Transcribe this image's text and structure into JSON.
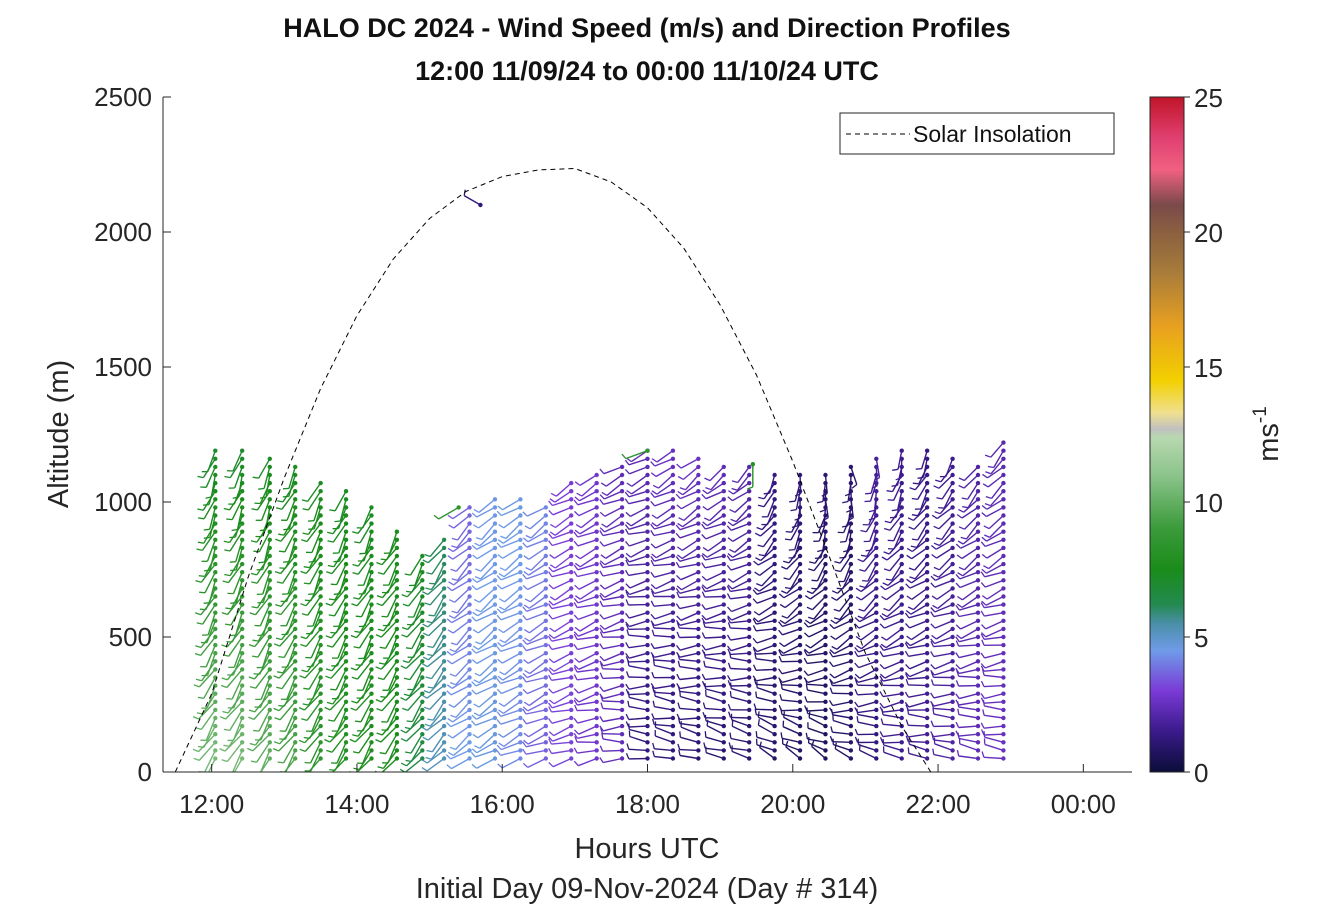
{
  "chart_data": {
    "type": "scatter",
    "title": "HALO DC 2024 - Wind Speed (m/s) and Direction Profiles",
    "subtitle": "12:00 11/09/24 to 00:00 11/10/24  UTC",
    "xlabel": "Hours UTC",
    "ylabel": "Altitude (m)",
    "footer": "Initial Day 09-Nov-2024 (Day # 314)",
    "x_ticks": [
      "12:00",
      "14:00",
      "16:00",
      "18:00",
      "20:00",
      "22:00",
      "00:00"
    ],
    "x_tick_hours": [
      12,
      14,
      16,
      18,
      20,
      22,
      24
    ],
    "xlim_hours": [
      11.33,
      24.67
    ],
    "y_ticks": [
      "0",
      "500",
      "1000",
      "1500",
      "2000",
      "2500"
    ],
    "y_tick_values": [
      0,
      500,
      1000,
      1500,
      2000,
      2500
    ],
    "ylim": [
      0,
      2500
    ],
    "colorbar": {
      "label_base": "ms",
      "label_exp": "-1",
      "range": [
        0,
        25
      ],
      "ticks": [
        "0",
        "5",
        "10",
        "15",
        "20",
        "25"
      ],
      "tick_values": [
        0,
        5,
        10,
        15,
        20,
        25
      ],
      "stops": [
        {
          "v": 0,
          "c": "#0b0d3a"
        },
        {
          "v": 1.5,
          "c": "#3a1a8a"
        },
        {
          "v": 3,
          "c": "#7a3ad6"
        },
        {
          "v": 4.5,
          "c": "#6f9be8"
        },
        {
          "v": 5.5,
          "c": "#4a8fa8"
        },
        {
          "v": 6.2,
          "c": "#238a50"
        },
        {
          "v": 7.5,
          "c": "#1a8c1a"
        },
        {
          "v": 9,
          "c": "#3a9a3a"
        },
        {
          "v": 11,
          "c": "#8cc48c"
        },
        {
          "v": 12.4,
          "c": "#b8d8b0"
        },
        {
          "v": 12.7,
          "c": "#c0c0c0"
        },
        {
          "v": 13.3,
          "c": "#f0e090"
        },
        {
          "v": 14.5,
          "c": "#f2d000"
        },
        {
          "v": 16.5,
          "c": "#e8a020"
        },
        {
          "v": 18.5,
          "c": "#a87c3a"
        },
        {
          "v": 20,
          "c": "#8a6040"
        },
        {
          "v": 21,
          "c": "#7a4a4a"
        },
        {
          "v": 22.3,
          "c": "#f06080"
        },
        {
          "v": 23.5,
          "c": "#e04070"
        },
        {
          "v": 25,
          "c": "#c01428"
        }
      ]
    },
    "solar_insolation": {
      "name": "Solar Insolation",
      "style": "dashed",
      "color": "#000000",
      "points": [
        [
          11.5,
          0
        ],
        [
          12.0,
          290
        ],
        [
          12.5,
          720
        ],
        [
          13.0,
          1090
        ],
        [
          13.5,
          1420
        ],
        [
          14.0,
          1690
        ],
        [
          14.5,
          1900
        ],
        [
          15.0,
          2050
        ],
        [
          15.5,
          2150
        ],
        [
          16.0,
          2205
        ],
        [
          16.5,
          2230
        ],
        [
          17.0,
          2235
        ],
        [
          17.5,
          2185
        ],
        [
          18.0,
          2090
        ],
        [
          18.5,
          1940
        ],
        [
          19.0,
          1730
        ],
        [
          19.5,
          1470
        ],
        [
          20.0,
          1150
        ],
        [
          20.5,
          800
        ],
        [
          21.0,
          440
        ],
        [
          21.5,
          170
        ],
        [
          21.9,
          0
        ],
        [
          24.67,
          0
        ]
      ]
    },
    "wind_barbs": {
      "note": "One vertical profile per time; each barb colored by wind speed (ms-1) and oriented by wind direction (degrees, meteorological).",
      "profiles": [
        {
          "t": 12.05,
          "top": 1200,
          "speed_lo": 10.5,
          "speed_hi": 7.0,
          "dir_lo": 215,
          "dir_hi": 200
        },
        {
          "t": 12.42,
          "top": 1200,
          "speed_lo": 10.5,
          "speed_hi": 7.0,
          "dir_lo": 215,
          "dir_hi": 200
        },
        {
          "t": 12.8,
          "top": 1160,
          "speed_lo": 10.0,
          "speed_hi": 7.2,
          "dir_lo": 215,
          "dir_hi": 200
        },
        {
          "t": 13.15,
          "top": 1150,
          "speed_lo": 9.5,
          "speed_hi": 7.2,
          "dir_lo": 215,
          "dir_hi": 205
        },
        {
          "t": 13.5,
          "top": 1080,
          "speed_lo": 8.5,
          "speed_hi": 7.3,
          "dir_lo": 215,
          "dir_hi": 205
        },
        {
          "t": 13.85,
          "top": 1050,
          "speed_lo": 8.0,
          "speed_hi": 7.3,
          "dir_lo": 215,
          "dir_hi": 205
        },
        {
          "t": 14.2,
          "top": 1000,
          "speed_lo": 7.8,
          "speed_hi": 7.3,
          "dir_lo": 215,
          "dir_hi": 205
        },
        {
          "t": 14.55,
          "top": 900,
          "speed_lo": 7.5,
          "speed_hi": 7.4,
          "dir_lo": 215,
          "dir_hi": 210
        },
        {
          "t": 14.9,
          "top": 820,
          "speed_lo": 6.5,
          "speed_hi": 7.4,
          "dir_lo": 220,
          "dir_hi": 210
        },
        {
          "t": 15.2,
          "top": 880,
          "speed_lo": 5.2,
          "speed_hi": 6.2,
          "dir_lo": 225,
          "dir_hi": 215
        },
        {
          "t": 15.55,
          "top": 980,
          "speed_lo": 4.6,
          "speed_hi": 3.6,
          "dir_lo": 235,
          "dir_hi": 225
        },
        {
          "t": 15.9,
          "top": 1020,
          "speed_lo": 4.7,
          "speed_hi": 4.4,
          "dir_lo": 240,
          "dir_hi": 230
        },
        {
          "t": 16.25,
          "top": 1020,
          "speed_lo": 4.2,
          "speed_hi": 4.6,
          "dir_lo": 245,
          "dir_hi": 235
        },
        {
          "t": 16.6,
          "top": 1000,
          "speed_lo": 3.6,
          "speed_hi": 4.2,
          "dir_lo": 250,
          "dir_hi": 235
        },
        {
          "t": 16.95,
          "top": 1080,
          "speed_lo": 3.2,
          "speed_hi": 3.0,
          "dir_lo": 255,
          "dir_hi": 240
        },
        {
          "t": 17.3,
          "top": 1110,
          "speed_lo": 2.8,
          "speed_hi": 2.8,
          "dir_lo": 260,
          "dir_hi": 240
        },
        {
          "t": 17.65,
          "top": 1130,
          "speed_lo": 2.4,
          "speed_hi": 2.4,
          "dir_lo": 270,
          "dir_hi": 240
        },
        {
          "t": 18.0,
          "top": 1200,
          "speed_lo": 1.2,
          "speed_hi": 2.4,
          "dir_lo": 280,
          "dir_hi": 240
        },
        {
          "t": 18.35,
          "top": 1190,
          "speed_lo": 1.1,
          "speed_hi": 2.6,
          "dir_lo": 285,
          "dir_hi": 235
        },
        {
          "t": 18.7,
          "top": 1160,
          "speed_lo": 1.0,
          "speed_hi": 2.6,
          "dir_lo": 285,
          "dir_hi": 230
        },
        {
          "t": 19.05,
          "top": 1140,
          "speed_lo": 1.0,
          "speed_hi": 2.4,
          "dir_lo": 290,
          "dir_hi": 230
        },
        {
          "t": 19.4,
          "top": 1130,
          "speed_lo": 1.0,
          "speed_hi": 2.2,
          "dir_lo": 290,
          "dir_hi": 225
        },
        {
          "t": 19.75,
          "top": 1110,
          "speed_lo": 0.9,
          "speed_hi": 1.4,
          "dir_lo": 300,
          "dir_hi": 200
        },
        {
          "t": 20.1,
          "top": 1100,
          "speed_lo": 0.8,
          "speed_hi": 1.2,
          "dir_lo": 300,
          "dir_hi": 180
        },
        {
          "t": 20.45,
          "top": 1120,
          "speed_lo": 0.7,
          "speed_hi": 1.0,
          "dir_lo": 300,
          "dir_hi": 170
        },
        {
          "t": 20.8,
          "top": 1140,
          "speed_lo": 0.9,
          "speed_hi": 1.0,
          "dir_lo": 290,
          "dir_hi": 170
        },
        {
          "t": 21.15,
          "top": 1170,
          "speed_lo": 1.2,
          "speed_hi": 1.8,
          "dir_lo": 285,
          "dir_hi": 180
        },
        {
          "t": 21.5,
          "top": 1200,
          "speed_lo": 1.6,
          "speed_hi": 1.6,
          "dir_lo": 280,
          "dir_hi": 190
        },
        {
          "t": 21.85,
          "top": 1200,
          "speed_lo": 1.7,
          "speed_hi": 1.4,
          "dir_lo": 280,
          "dir_hi": 200
        },
        {
          "t": 22.2,
          "top": 1170,
          "speed_lo": 2.0,
          "speed_hi": 1.6,
          "dir_lo": 280,
          "dir_hi": 210
        },
        {
          "t": 22.55,
          "top": 1150,
          "speed_lo": 2.4,
          "speed_hi": 2.0,
          "dir_lo": 280,
          "dir_hi": 215
        },
        {
          "t": 22.9,
          "top": 1220,
          "speed_lo": 2.6,
          "speed_hi": 2.2,
          "dir_lo": 280,
          "dir_hi": 220
        }
      ],
      "isolated": [
        {
          "t": 15.7,
          "alt": 2100,
          "speed": 1.2,
          "dir": 300
        },
        {
          "t": 18.0,
          "alt": 1190,
          "speed": 8.5,
          "dir": 250
        },
        {
          "t": 19.45,
          "alt": 1140,
          "speed": 8.0,
          "dir": 180
        },
        {
          "t": 15.4,
          "alt": 980,
          "speed": 8.5,
          "dir": 240
        }
      ]
    },
    "legend": {
      "placement": "top-right",
      "entries": [
        "Solar Insolation"
      ]
    },
    "grid": false
  }
}
